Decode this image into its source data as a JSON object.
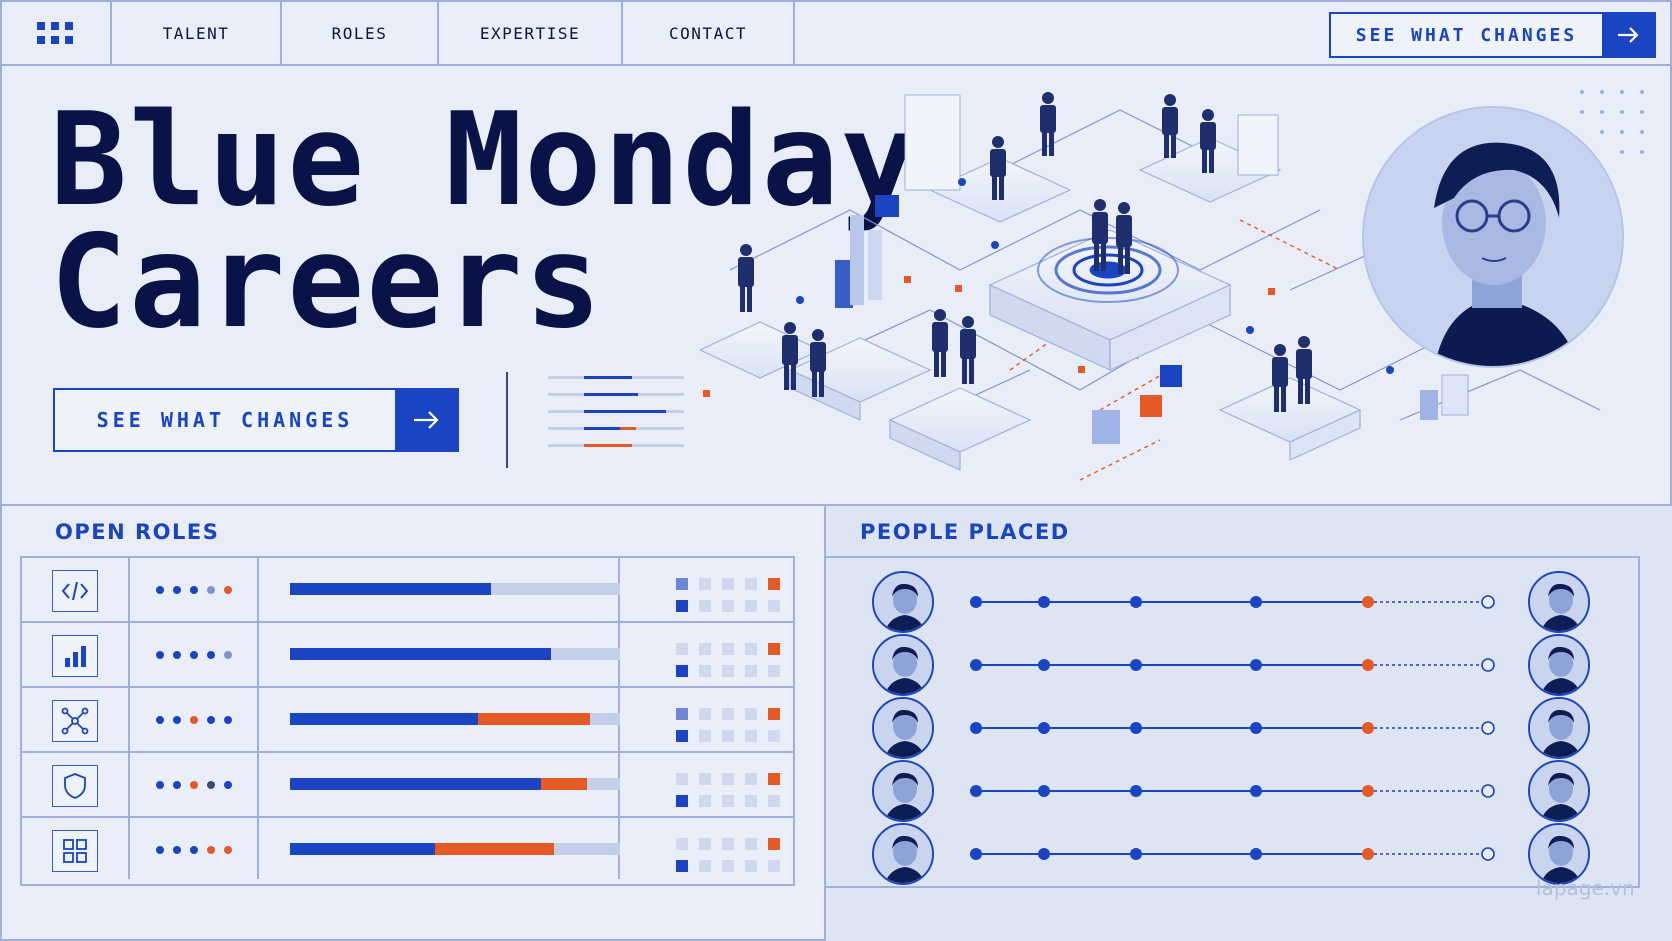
{
  "nav": {
    "items": [
      "TALENT",
      "ROLES",
      "EXPERTISE",
      "CONTACT"
    ],
    "cta_label": "SEE WHAT CHANGES",
    "icons": {
      "menu": "grid-icon",
      "cta": "arrow-right-icon"
    }
  },
  "hero": {
    "title_line1": "Blue Monday",
    "title_line2": "Careers",
    "cta_label": "SEE WHAT CHANGES"
  },
  "open_roles": {
    "title": "OPEN ROLES",
    "rows": [
      {
        "icon": "code-icon",
        "progress_blue": 0.61,
        "progress_orange": 0
      },
      {
        "icon": "bar-chart-icon",
        "progress_blue": 0.79,
        "progress_orange": 0
      },
      {
        "icon": "network-icon",
        "progress_blue": 0.57,
        "progress_orange": 0.34
      },
      {
        "icon": "shield-icon",
        "progress_blue": 0.76,
        "progress_orange": 0.14
      },
      {
        "icon": "apps-grid-icon",
        "progress_blue": 0.44,
        "progress_orange": 0.36
      }
    ]
  },
  "people_placed": {
    "title": "PEOPLE PLACED",
    "rows": 5
  },
  "colors": {
    "brand_blue": "#1a44c2",
    "accent_orange": "#e45a26",
    "ink": "#0a1347",
    "background": "#e8edf8"
  },
  "watermark": "lapage.vn"
}
